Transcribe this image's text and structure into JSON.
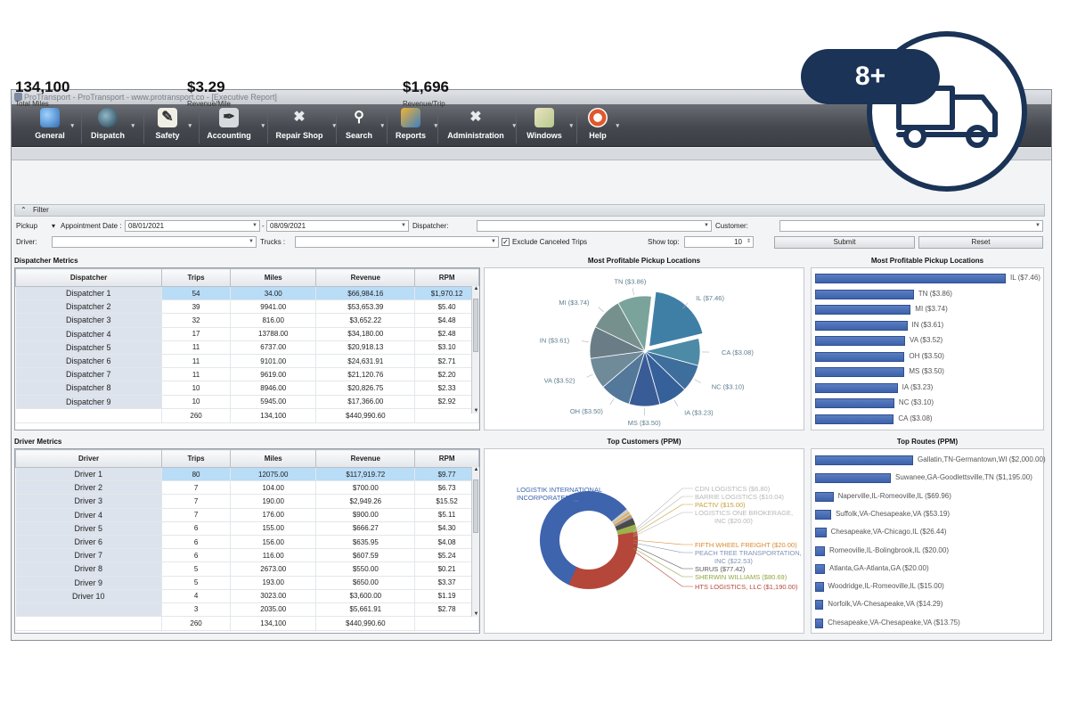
{
  "window": {
    "title": "ProTransport - ProTransport - www.protransport.co - [Executive Report]"
  },
  "toolbar": [
    {
      "label": "General",
      "icon": "globe-icon"
    },
    {
      "label": "Dispatch",
      "icon": "dispatch-globe-icon"
    },
    {
      "label": "Safety",
      "icon": "safety-clipboard-icon"
    },
    {
      "label": "Accounting",
      "icon": "accounting-pen-icon"
    },
    {
      "label": "Repair Shop",
      "icon": "wrench-icon"
    },
    {
      "label": "Search",
      "icon": "magnifier-icon"
    },
    {
      "label": "Reports",
      "icon": "reports-icon"
    },
    {
      "label": "Administration",
      "icon": "admin-tools-icon"
    },
    {
      "label": "Windows",
      "icon": "windows-icon"
    },
    {
      "label": "Help",
      "icon": "lifebuoy-icon"
    }
  ],
  "kpis": [
    {
      "value": "134,100",
      "label": "Total Miles"
    },
    {
      "value": "$3.29",
      "label": "Revenue/Mile"
    },
    {
      "value": "$1,696",
      "label": "Revenue/Trip"
    }
  ],
  "filter": {
    "title": "Filter",
    "pickup": "Pickup",
    "date_field": "Appointment Date :",
    "date_from": "08/01/2021",
    "dash": "-",
    "date_to": "08/09/2021",
    "dispatcher_label": "Dispatcher:",
    "customer_label": "Customer:",
    "driver_label": "Driver:",
    "trucks_label": "Trucks :",
    "exclude_label": "Exclude Canceled Trips",
    "exclude_checked": "✓",
    "show_top_label": "Show top:",
    "show_top_value": "10",
    "submit": "Submit",
    "reset": "Reset"
  },
  "dispatcher_metrics": {
    "title": "Dispatcher Metrics",
    "columns": [
      "Dispatcher",
      "Trips",
      "Miles",
      "Revenue",
      "RPM"
    ],
    "rows": [
      [
        "Dispatcher 1",
        "54",
        "34.00",
        "$66,984.16",
        "$1,970.12"
      ],
      [
        "Dispatcher 2",
        "39",
        "9941.00",
        "$53,653.39",
        "$5.40"
      ],
      [
        "Dispatcher 3",
        "32",
        "816.00",
        "$3,652.22",
        "$4.48"
      ],
      [
        "Dispatcher 4",
        "17",
        "13788.00",
        "$34,180.00",
        "$2.48"
      ],
      [
        "Dispatcher 5",
        "11",
        "6737.00",
        "$20,918.13",
        "$3.10"
      ],
      [
        "Dispatcher 6",
        "11",
        "9101.00",
        "$24,631.91",
        "$2.71"
      ],
      [
        "Dispatcher 7",
        "11",
        "9619.00",
        "$21,120.76",
        "$2.20"
      ],
      [
        "Dispatcher 8",
        "10",
        "8946.00",
        "$20,826.75",
        "$2.33"
      ],
      [
        "Dispatcher 9",
        "10",
        "5945.00",
        "$17,366.00",
        "$2.92"
      ]
    ],
    "totals": [
      "",
      "260",
      "134,100",
      "$440,990.60",
      ""
    ]
  },
  "driver_metrics": {
    "title": "Driver Metrics",
    "columns": [
      "Driver",
      "Trips",
      "Miles",
      "Revenue",
      "RPM"
    ],
    "rows": [
      [
        "Driver 1",
        "80",
        "12075.00",
        "$117,919.72",
        "$9.77"
      ],
      [
        "Driver 2",
        "7",
        "104.00",
        "$700.00",
        "$6.73"
      ],
      [
        "Driver 3",
        "7",
        "190.00",
        "$2,949.26",
        "$15.52"
      ],
      [
        "Driver 4",
        "7",
        "176.00",
        "$900.00",
        "$5.11"
      ],
      [
        "Driver 5",
        "6",
        "155.00",
        "$666.27",
        "$4.30"
      ],
      [
        "Driver 6",
        "6",
        "156.00",
        "$635.95",
        "$4.08"
      ],
      [
        "Driver 7",
        "6",
        "116.00",
        "$607.59",
        "$5.24"
      ],
      [
        "Driver 8",
        "5",
        "2673.00",
        "$550.00",
        "$0.21"
      ],
      [
        "Driver 9",
        "5",
        "193.00",
        "$650.00",
        "$3.37"
      ],
      [
        "Driver 10",
        "4",
        "3023.00",
        "$3,600.00",
        "$1.19"
      ],
      [
        "",
        "3",
        "2035.00",
        "$5,661.91",
        "$2.78"
      ]
    ],
    "totals": [
      "",
      "260",
      "134,100",
      "$440,990.60",
      ""
    ]
  },
  "chart_data": [
    {
      "type": "pie",
      "title": "Most Profitable Pickup Locations",
      "categories": [
        "IL",
        "CA",
        "NC",
        "IA",
        "MS",
        "OH",
        "VA",
        "IN",
        "MI",
        "TN"
      ],
      "values": [
        7.46,
        3.08,
        3.1,
        3.23,
        3.5,
        3.5,
        3.52,
        3.61,
        3.74,
        3.86
      ],
      "labels": [
        "IL ($7.46)",
        "CA ($3.08)",
        "NC ($3.10)",
        "IA ($3.23)",
        "MS ($3.50)",
        "OH ($3.50)",
        "VA ($3.52)",
        "IN ($3.61)",
        "MI ($3.74)",
        "TN ($3.86)"
      ],
      "colors": [
        "#3f7fa6",
        "#4c8aa6",
        "#3e6e9c",
        "#36609a",
        "#3a5c96",
        "#53789a",
        "#6f8a99",
        "#6a7d87",
        "#76908e",
        "#7aa49b"
      ]
    },
    {
      "type": "bar",
      "title": "Most Profitable Pickup Locations",
      "categories": [
        "IL",
        "TN",
        "MI",
        "IN",
        "VA",
        "OH",
        "MS",
        "IA",
        "NC",
        "CA"
      ],
      "values": [
        7.46,
        3.86,
        3.74,
        3.61,
        3.52,
        3.5,
        3.5,
        3.23,
        3.1,
        3.08
      ],
      "labels": [
        "IL ($7.46)",
        "TN ($3.86)",
        "MI ($3.74)",
        "IN ($3.61)",
        "VA ($3.52)",
        "OH ($3.50)",
        "MS ($3.50)",
        "IA ($3.23)",
        "NC ($3.10)",
        "CA ($3.08)"
      ]
    },
    {
      "type": "pie",
      "title": "Top Customers (PPM)",
      "categories": [
        "LOGISTIK INTERNATIONAL INCORPORATED",
        "CDN LOGISTICS",
        "BARRIE LOGISTICS",
        "PACTIV",
        "LOGISTICS ONE BROKERAGE, INC",
        "FIFTH WHEEL FREIGHT",
        "PEACH TREE TRANSPORTATION, INC",
        "SURUS",
        "SHERWIN WILLIAMS",
        "HTS LOGISTICS, LLC"
      ],
      "values": [
        2000.0,
        6.8,
        10.04,
        15.0,
        20.0,
        20.0,
        22.53,
        77.42,
        80.69,
        1190.0
      ],
      "labels": [
        "LOGISTIK INTERNATIONAL INCORPORATED ($2,000.00)",
        "CDN LOGISTICS ($6.80)",
        "BARRIE LOGISTICS ($10.04)",
        "PACTIV ($15.00)",
        "LOGISTICS ONE BROKERAGE, INC ($20.00)",
        "FIFTH WHEEL FREIGHT ($20.00)",
        "PEACH TREE TRANSPORTATION, INC ($22.53)",
        "SURUS ($77.42)",
        "SHERWIN WILLIAMS ($80.69)",
        "HTS LOGISTICS, LLC ($1,190.00)"
      ],
      "colors": [
        "#3e64ad",
        "#c9c9c9",
        "#c9c9c9",
        "#d6b34a",
        "#c9c9c9",
        "#e08a2c",
        "#8aa0c0",
        "#4a4a4a",
        "#9bb34a",
        "#b5473a"
      ]
    },
    {
      "type": "bar",
      "title": "Top Routes (PPM)",
      "categories": [
        "Gallatin,TN-Germantown,WI",
        "Suwanee,GA-Goodlettsville,TN",
        "Naperville,IL-Romeoville,IL",
        "Suffolk,VA-Chesapeake,VA",
        "Chesapeake,VA-Chicago,IL",
        "Romeoville,IL-Bolingbrook,IL",
        "Atlanta,GA-Atlanta,GA",
        "Woodridge,IL-Romeoville,IL",
        "Norfolk,VA-Chesapeake,VA",
        "Chesapeake,VA-Chesapeake,VA"
      ],
      "values": [
        2000.0,
        1195.0,
        69.96,
        53.19,
        26.44,
        20.0,
        20.0,
        15.0,
        14.29,
        13.75
      ],
      "labels": [
        "Gallatin,TN-Germantown,WI ($2,000.00)",
        "Suwanee,GA-Goodlettsville,TN ($1,195.00)",
        "Naperville,IL-Romeoville,IL ($69.96)",
        "Suffolk,VA-Chesapeake,VA ($53.19)",
        "Chesapeake,VA-Chicago,IL ($26.44)",
        "Romeoville,IL-Bolingbrook,IL ($20.00)",
        "Atlanta,GA-Atlanta,GA ($20.00)",
        "Woodridge,IL-Romeoville,IL ($15.00)",
        "Norfolk,VA-Chesapeake,VA ($14.29)",
        "Chesapeake,VA-Chesapeake,VA ($13.75)"
      ]
    }
  ],
  "badge": {
    "text": "8+",
    "icon": "truck-icon"
  },
  "colors": {
    "navy": "#1a3356",
    "bar_blue": "#3c62ad",
    "toolbar": "#45494f"
  }
}
